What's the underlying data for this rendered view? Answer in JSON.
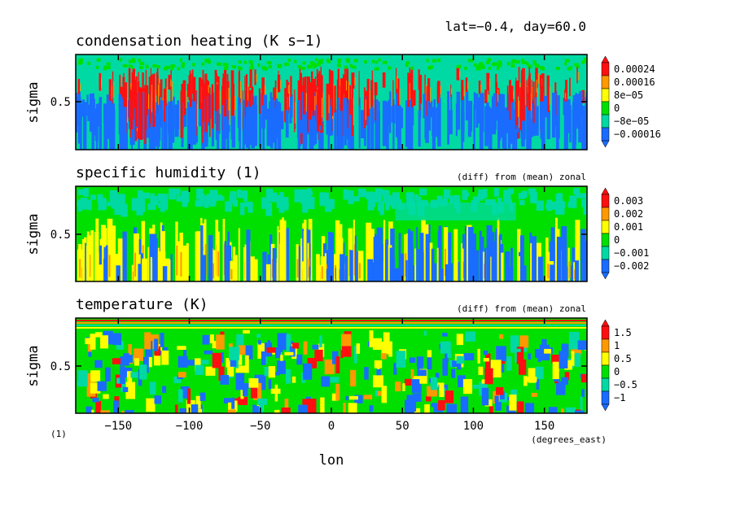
{
  "header": {
    "info": "lat=−0.4, day=60.0"
  },
  "x_axis": {
    "label": "lon",
    "units": "(degrees_east)",
    "scale_note": "(1)",
    "ticks": [
      "−150",
      "−100",
      "−50",
      "0",
      "50",
      "100",
      "150"
    ],
    "tick_values": [
      -150,
      -100,
      -50,
      0,
      50,
      100,
      150
    ],
    "range": [
      -180,
      180
    ]
  },
  "palette": {
    "blue": "#1a6cff",
    "cyan": "#00d9a3",
    "green": "#00e000",
    "yellow": "#ffff00",
    "orange": "#ff9900",
    "red": "#ff1010"
  },
  "panels": [
    {
      "title": "condensation heating (K s−1)",
      "note": "",
      "ylabel": "sigma",
      "ytick": "0.5",
      "colorbar": [
        "0.00024",
        "0.00016",
        "8e−05",
        "0",
        "−8e−05",
        "−0.00016"
      ],
      "background": "cyan"
    },
    {
      "title": "specific humidity (1)",
      "note": "(diff) from (mean) zonal",
      "ylabel": "sigma",
      "ytick": "0.5",
      "colorbar": [
        "0.003",
        "0.002",
        "0.001",
        "0",
        "−0.001",
        "−0.002"
      ],
      "background": "green"
    },
    {
      "title": "temperature (K)",
      "note": "(diff) from (mean) zonal",
      "ylabel": "sigma",
      "ytick": "0.5",
      "colorbar": [
        "1.5",
        "1",
        "0.5",
        "0",
        "−0.5",
        "−1"
      ],
      "background": "green"
    }
  ],
  "chart_data": [
    {
      "type": "heatmap",
      "title": "condensation heating (K s−1)",
      "xlabel": "lon",
      "ylabel": "sigma",
      "xlim": [
        -180,
        180
      ],
      "colorbar_levels": [
        -0.00016,
        -8e-05,
        0,
        8e-05,
        0.00016,
        0.00024
      ]
    },
    {
      "type": "heatmap",
      "title": "specific humidity (1)",
      "subtitle": "(diff) from (mean) zonal",
      "xlabel": "lon",
      "ylabel": "sigma",
      "xlim": [
        -180,
        180
      ],
      "colorbar_levels": [
        -0.002,
        -0.001,
        0,
        0.001,
        0.002,
        0.003
      ]
    },
    {
      "type": "heatmap",
      "title": "temperature (K)",
      "subtitle": "(diff) from (mean) zonal",
      "xlabel": "lon",
      "ylabel": "sigma",
      "xlim": [
        -180,
        180
      ],
      "colorbar_levels": [
        -1,
        -0.5,
        0,
        0.5,
        1,
        1.5
      ]
    }
  ]
}
